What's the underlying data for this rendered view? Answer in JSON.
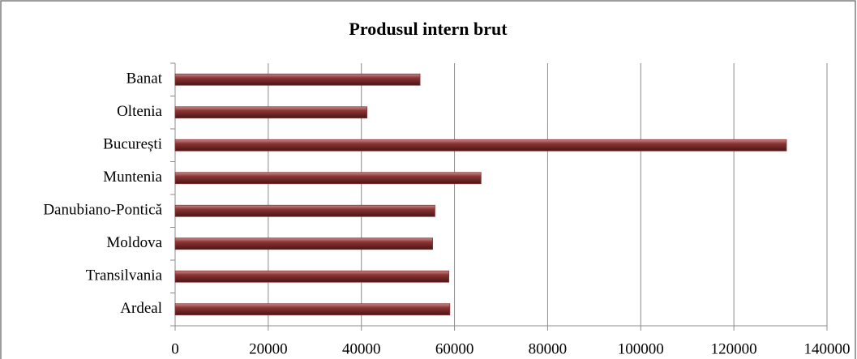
{
  "chart_data": {
    "type": "bar",
    "orientation": "horizontal",
    "title": "Produsul intern brut",
    "categories": [
      "Banat",
      "Oltenia",
      "București",
      "Muntenia",
      "Danubiano-Pontică",
      "Moldova",
      "Transilvania",
      "Ardeal"
    ],
    "values": [
      52600,
      41200,
      131300,
      65700,
      55800,
      55300,
      58800,
      59000
    ],
    "color": "#8b3535",
    "xlim": [
      0,
      140000
    ],
    "xticks": [
      0,
      20000,
      40000,
      60000,
      80000,
      100000,
      120000,
      140000
    ],
    "grid": true
  }
}
